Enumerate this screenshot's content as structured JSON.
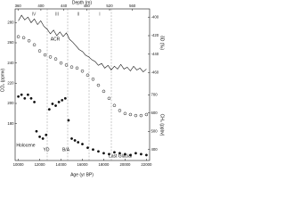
{
  "chart_data": {
    "type": "multi",
    "x_label": "Age (yr BP)",
    "xlim": [
      9700,
      22300
    ],
    "xticks": [
      10000,
      12000,
      14000,
      16000,
      18000,
      20000,
      22000
    ],
    "top_label": "Depth (m)",
    "top_lim": [
      355,
      590
    ],
    "top_ticks": [
      360,
      400,
      440,
      480,
      520,
      560
    ],
    "panels": [
      {
        "type": "line",
        "y_label": "δD (‰)",
        "side": "right",
        "color": "#111111",
        "ylim": [
          -470,
          -395
        ],
        "yticks": [
          -400,
          -420,
          -440,
          -460
        ],
        "x": [
          10000,
          10300,
          10600,
          10900,
          11200,
          11500,
          11800,
          12100,
          12400,
          12700,
          13000,
          13300,
          13600,
          13900,
          14200,
          14500,
          14800,
          15100,
          15400,
          15700,
          16000,
          16300,
          16600,
          16900,
          17200,
          17500,
          17800,
          18100,
          18400,
          18700,
          19000,
          19300,
          19600,
          19900,
          20200,
          20500,
          20800,
          21100,
          21400,
          21700,
          22000
        ],
        "values": [
          -404,
          -398,
          -403,
          -400,
          -406,
          -402,
          -408,
          -404,
          -410,
          -413,
          -418,
          -414,
          -420,
          -416,
          -421,
          -417,
          -424,
          -427,
          -431,
          -435,
          -437,
          -441,
          -443,
          -446,
          -448,
          -452,
          -450,
          -455,
          -452,
          -457,
          -453,
          -456,
          -451,
          -456,
          -454,
          -458,
          -453,
          -457,
          -455,
          -459,
          -456
        ]
      },
      {
        "type": "scatter",
        "marker": "open",
        "y_label": "CO₂ (ppmv)",
        "side": "left",
        "color": "#111111",
        "ylim": [
          170,
          290
        ],
        "yticks": [
          180,
          200,
          220,
          240,
          260,
          280
        ],
        "x": [
          10000,
          10500,
          11000,
          11500,
          12000,
          12500,
          13000,
          13500,
          14000,
          14500,
          15000,
          15500,
          16000,
          16500,
          17000,
          17500,
          18000,
          18500,
          19000,
          19500,
          20000,
          20500,
          21000,
          21500,
          22000
        ],
        "values": [
          266,
          265,
          262,
          258,
          252,
          248,
          246,
          244,
          240,
          238,
          236,
          235,
          232,
          228,
          224,
          218,
          212,
          205,
          198,
          193,
          190,
          189,
          188,
          188,
          189
        ]
      },
      {
        "type": "scatter",
        "marker": "filled",
        "y_label": "CH₄ (ppbv)",
        "side": "right",
        "color": "#111111",
        "ylim": [
          350,
          750
        ],
        "yticks": [
          400,
          500,
          600,
          700
        ],
        "x": [
          10000,
          10300,
          10600,
          10900,
          11200,
          11500,
          11700,
          12000,
          12300,
          12600,
          12900,
          13200,
          13500,
          13800,
          14100,
          14400,
          14700,
          15000,
          15300,
          15600,
          16000,
          16500,
          17000,
          17500,
          18000,
          18500,
          19000,
          19500,
          20000,
          20500,
          21000,
          21500,
          22000
        ],
        "values": [
          690,
          700,
          680,
          700,
          680,
          660,
          500,
          470,
          460,
          480,
          620,
          650,
          640,
          660,
          670,
          680,
          560,
          460,
          450,
          440,
          430,
          410,
          400,
          390,
          380,
          375,
          385,
          380,
          375,
          370,
          380,
          375,
          370
        ]
      }
    ],
    "annotations": [
      "IV",
      "III",
      "II",
      "I",
      "ACR",
      "Holocene",
      "YD",
      "B/A",
      "Last Glacial"
    ]
  }
}
